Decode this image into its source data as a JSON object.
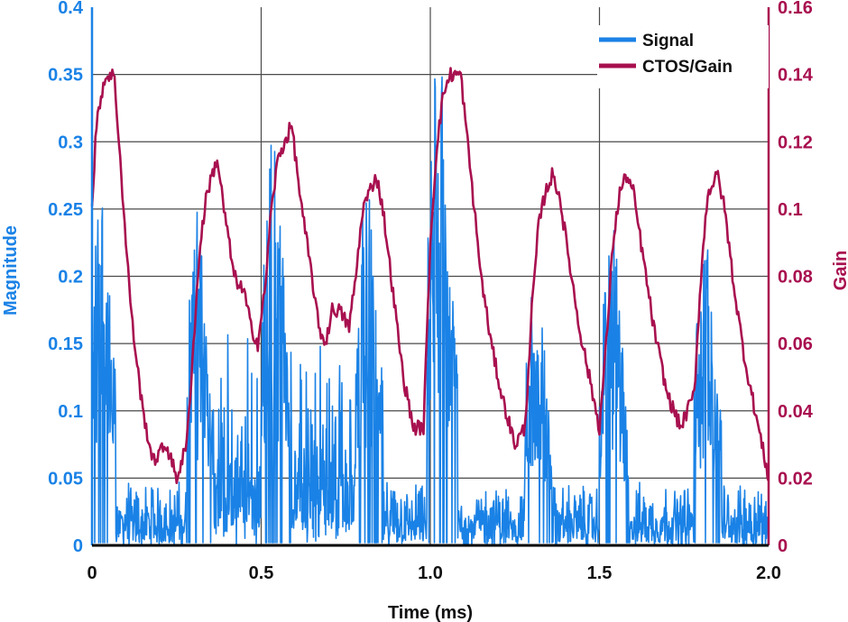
{
  "chart_data": {
    "type": "line",
    "xlabel": "Time (ms)",
    "ylabel_left": "Magnitude",
    "ylabel_right": "Gain",
    "xlim": [
      0,
      2.0
    ],
    "ylim_left": [
      0,
      0.4
    ],
    "ylim_right": [
      0,
      0.16
    ],
    "x_ticks": [
      "0",
      "0.5",
      "1.0",
      "1.5",
      "2.0"
    ],
    "y_ticks_left": [
      "0",
      "0.05",
      "0.1",
      "0.15",
      "0.2",
      "0.25",
      "0.3",
      "0.35",
      "0.4"
    ],
    "y_ticks_right": [
      "0",
      "0.02",
      "0.04",
      "0.06",
      "0.08",
      "0.1",
      "0.12",
      "0.14",
      "0.16"
    ],
    "grid": true,
    "legend_position": "top-right",
    "colors": {
      "signal": "#1a82e6",
      "gain": "#a8104f"
    },
    "series": [
      {
        "name": "Signal",
        "axis": "left",
        "bursts": [
          {
            "start": 0.0,
            "end": 0.07,
            "peak": 0.29
          },
          {
            "start": 0.28,
            "end": 0.36,
            "peak": 0.25
          },
          {
            "start": 0.5,
            "end": 0.59,
            "peak": 0.31
          },
          {
            "start": 0.78,
            "end": 0.86,
            "peak": 0.27
          },
          {
            "start": 0.99,
            "end": 1.08,
            "peak": 0.37
          },
          {
            "start": 1.28,
            "end": 1.36,
            "peak": 0.22
          },
          {
            "start": 1.5,
            "end": 1.59,
            "peak": 0.24
          },
          {
            "start": 1.78,
            "end": 1.86,
            "peak": 0.23
          }
        ],
        "baseline_max": 0.05,
        "mid_activity": {
          "start": 0.28,
          "end": 0.86,
          "max": 0.12
        }
      },
      {
        "name": "CTOS/Gain",
        "axis": "right",
        "points": [
          [
            0.0,
            0.1
          ],
          [
            0.01,
            0.12
          ],
          [
            0.02,
            0.13
          ],
          [
            0.035,
            0.138
          ],
          [
            0.05,
            0.14
          ],
          [
            0.065,
            0.14
          ],
          [
            0.08,
            0.12
          ],
          [
            0.1,
            0.09
          ],
          [
            0.12,
            0.065
          ],
          [
            0.15,
            0.04
          ],
          [
            0.18,
            0.025
          ],
          [
            0.22,
            0.03
          ],
          [
            0.25,
            0.02
          ],
          [
            0.28,
            0.03
          ],
          [
            0.3,
            0.06
          ],
          [
            0.32,
            0.09
          ],
          [
            0.34,
            0.105
          ],
          [
            0.37,
            0.115
          ],
          [
            0.39,
            0.1
          ],
          [
            0.42,
            0.08
          ],
          [
            0.45,
            0.075
          ],
          [
            0.47,
            0.065
          ],
          [
            0.49,
            0.06
          ],
          [
            0.51,
            0.075
          ],
          [
            0.53,
            0.1
          ],
          [
            0.55,
            0.115
          ],
          [
            0.57,
            0.12
          ],
          [
            0.59,
            0.125
          ],
          [
            0.62,
            0.1
          ],
          [
            0.65,
            0.08
          ],
          [
            0.67,
            0.065
          ],
          [
            0.69,
            0.06
          ],
          [
            0.71,
            0.07
          ],
          [
            0.73,
            0.07
          ],
          [
            0.76,
            0.065
          ],
          [
            0.78,
            0.08
          ],
          [
            0.8,
            0.1
          ],
          [
            0.82,
            0.105
          ],
          [
            0.84,
            0.11
          ],
          [
            0.86,
            0.1
          ],
          [
            0.89,
            0.075
          ],
          [
            0.92,
            0.05
          ],
          [
            0.95,
            0.035
          ],
          [
            0.98,
            0.035
          ],
          [
            1.0,
            0.09
          ],
          [
            1.02,
            0.12
          ],
          [
            1.04,
            0.135
          ],
          [
            1.06,
            0.14
          ],
          [
            1.09,
            0.14
          ],
          [
            1.12,
            0.11
          ],
          [
            1.15,
            0.08
          ],
          [
            1.18,
            0.06
          ],
          [
            1.21,
            0.045
          ],
          [
            1.25,
            0.03
          ],
          [
            1.28,
            0.035
          ],
          [
            1.3,
            0.07
          ],
          [
            1.32,
            0.095
          ],
          [
            1.34,
            0.105
          ],
          [
            1.36,
            0.11
          ],
          [
            1.38,
            0.105
          ],
          [
            1.41,
            0.085
          ],
          [
            1.44,
            0.065
          ],
          [
            1.47,
            0.05
          ],
          [
            1.5,
            0.035
          ],
          [
            1.52,
            0.06
          ],
          [
            1.54,
            0.09
          ],
          [
            1.56,
            0.105
          ],
          [
            1.58,
            0.11
          ],
          [
            1.6,
            0.105
          ],
          [
            1.63,
            0.085
          ],
          [
            1.66,
            0.065
          ],
          [
            1.7,
            0.045
          ],
          [
            1.74,
            0.035
          ],
          [
            1.78,
            0.045
          ],
          [
            1.8,
            0.08
          ],
          [
            1.82,
            0.105
          ],
          [
            1.85,
            0.11
          ],
          [
            1.87,
            0.1
          ],
          [
            1.9,
            0.075
          ],
          [
            1.93,
            0.055
          ],
          [
            1.96,
            0.04
          ],
          [
            1.98,
            0.03
          ],
          [
            2.0,
            0.02
          ]
        ]
      }
    ]
  }
}
